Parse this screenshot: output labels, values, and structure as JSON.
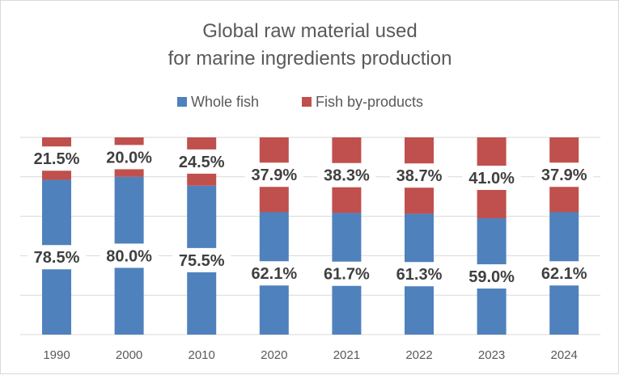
{
  "chart_data": {
    "type": "bar",
    "stacked": "percent",
    "title_lines": [
      "Global raw material used",
      "for marine ingredients production"
    ],
    "categories": [
      "1990",
      "2000",
      "2010",
      "2020",
      "2021",
      "2022",
      "2023",
      "2024"
    ],
    "series": [
      {
        "name": "Whole fish",
        "color": "#4f81bd",
        "values": [
          78.5,
          80.0,
          75.5,
          62.1,
          61.7,
          61.3,
          59.0,
          62.1
        ],
        "labels": [
          "78.5%",
          "80.0%",
          "75.5%",
          "62.1%",
          "61.7%",
          "61.3%",
          "59.0%",
          "62.1%"
        ]
      },
      {
        "name": "Fish by-products",
        "color": "#c0504d",
        "values": [
          21.5,
          20.0,
          24.5,
          37.9,
          38.3,
          38.7,
          41.0,
          37.9
        ],
        "labels": [
          "21.5%",
          "20.0%",
          "24.5%",
          "37.9%",
          "38.3%",
          "38.7%",
          "41.0%",
          "37.9%"
        ]
      }
    ],
    "ylim": [
      0,
      100
    ],
    "grid": true,
    "y_axis_labels_shown": false,
    "legend_position": "top"
  }
}
